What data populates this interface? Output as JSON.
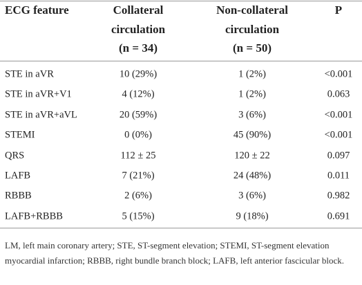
{
  "table": {
    "header": [
      [
        "ECG feature"
      ],
      [
        "Collateral",
        "circulation",
        "(n = 34)"
      ],
      [
        "Non-collateral",
        "circulation",
        "(n = 50)"
      ],
      [
        "P"
      ]
    ],
    "rows": [
      [
        "STE in aVR",
        "10 (29%)",
        "1 (2%)",
        "<0.001"
      ],
      [
        "STE in aVR+V1",
        "4 (12%)",
        "1 (2%)",
        "0.063"
      ],
      [
        "STE in aVR+aVL",
        "20 (59%)",
        "3 (6%)",
        "<0.001"
      ],
      [
        "STEMI",
        "0 (0%)",
        "45 (90%)",
        "<0.001"
      ],
      [
        "QRS",
        "112 ± 25",
        "120 ± 22",
        "0.097"
      ],
      [
        "LAFB",
        "7 (21%)",
        "24 (48%)",
        "0.011"
      ],
      [
        "RBBB",
        "2 (6%)",
        "3 (6%)",
        "0.982"
      ],
      [
        "LAFB+RBBB",
        "5 (15%)",
        "9 (18%)",
        "0.691"
      ]
    ],
    "footnote": "LM, left main coronary artery; STE, ST-segment elevation; STEMI, ST-segment elevation myocardial infarction; RBBB, right bundle branch block; LAFB, left anterior fascicular block."
  }
}
